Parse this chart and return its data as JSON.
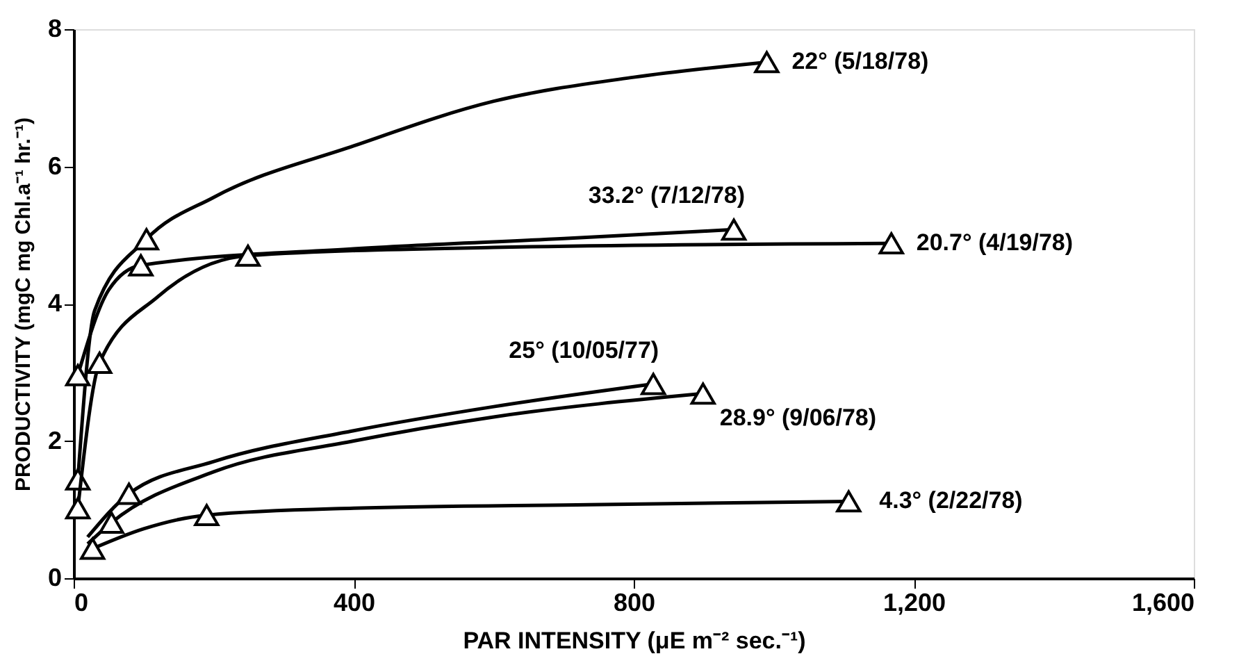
{
  "chart_data": {
    "type": "line",
    "xlabel": "PAR INTENSITY (μE m⁻² sec.⁻¹)",
    "ylabel": "PRODUCTIVITY (mgC mg Chl.a⁻¹ hr.⁻¹)",
    "xlim": [
      0,
      1600
    ],
    "ylim": [
      0,
      8
    ],
    "xticks": [
      0,
      400,
      800,
      {
        "value": 1200,
        "label": "1,200"
      },
      {
        "value": 1600,
        "label": "1,600"
      }
    ],
    "yticks": [
      0,
      2,
      4,
      6,
      8
    ],
    "grid": false,
    "series": [
      {
        "marker": "none",
        "color": "#000000",
        "x": [
          6,
          30,
          104,
          200,
          400,
          600,
          800,
          990
        ],
        "values": [
          1.44,
          3.9,
          4.94,
          5.55,
          6.3,
          6.95,
          7.3,
          7.52
        ]
      },
      {
        "type": "scatter",
        "marker": "triangle",
        "color": "#000000",
        "x": [
          6,
          104,
          990
        ],
        "values": [
          1.44,
          4.94,
          7.52
        ]
      },
      {
        "marker": "none",
        "color": "#000000",
        "x": [
          6,
          50,
          96,
          400,
          700,
          943
        ],
        "values": [
          2.96,
          4.2,
          4.56,
          4.8,
          4.95,
          5.08
        ]
      },
      {
        "type": "scatter",
        "marker": "triangle",
        "color": "#000000",
        "x": [
          6,
          96,
          943
        ],
        "values": [
          2.96,
          4.56,
          5.08
        ]
      },
      {
        "marker": "none",
        "color": "#000000",
        "x": [
          6,
          37,
          120,
          249,
          600,
          1168
        ],
        "values": [
          1.02,
          3.14,
          4.1,
          4.7,
          4.82,
          4.88
        ]
      },
      {
        "type": "scatter",
        "marker": "triangle",
        "color": "#000000",
        "x": [
          6,
          37,
          249,
          1168
        ],
        "values": [
          1.02,
          3.14,
          4.7,
          4.88
        ]
      },
      {
        "marker": "none",
        "color": "#000000",
        "x": [
          20,
          79,
          200,
          400,
          600,
          828
        ],
        "values": [
          0.6,
          1.23,
          1.7,
          2.15,
          2.5,
          2.83
        ]
      },
      {
        "type": "scatter",
        "marker": "triangle",
        "color": "#000000",
        "x": [
          79,
          828
        ],
        "values": [
          1.23,
          2.83
        ]
      },
      {
        "marker": "none",
        "color": "#000000",
        "x": [
          20,
          54,
          200,
          400,
          600,
          899
        ],
        "values": [
          0.5,
          0.81,
          1.55,
          2.0,
          2.35,
          2.69
        ]
      },
      {
        "type": "scatter",
        "marker": "triangle",
        "color": "#000000",
        "x": [
          54,
          899
        ],
        "values": [
          0.81,
          2.69
        ]
      },
      {
        "marker": "none",
        "color": "#000000",
        "x": [
          27,
          100,
          190,
          400,
          735,
          1107
        ],
        "values": [
          0.43,
          0.72,
          0.92,
          1.02,
          1.07,
          1.12
        ]
      },
      {
        "type": "scatter",
        "marker": "triangle",
        "color": "#000000",
        "x": [
          27,
          190,
          1107
        ],
        "values": [
          0.43,
          0.92,
          1.12
        ]
      }
    ],
    "annotations": [
      {
        "text": "22° (5/18/78)",
        "x": 990,
        "y": 7.52
      },
      {
        "text": "33.2° (7/12/78)",
        "x": 943,
        "y": 5.08
      },
      {
        "text": "20.7° (4/19/78)",
        "x": 1168,
        "y": 4.88
      },
      {
        "text": "25° (10/05/77)",
        "x": 828,
        "y": 2.83
      },
      {
        "text": "28.9° (9/06/78)",
        "x": 899,
        "y": 2.69
      },
      {
        "text": "4.3° (2/22/78)",
        "x": 1107,
        "y": 1.12
      }
    ]
  }
}
